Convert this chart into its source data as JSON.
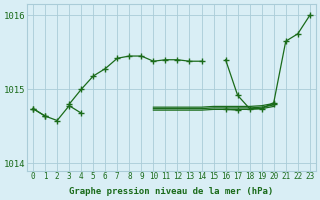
{
  "x": [
    0,
    1,
    2,
    3,
    4,
    5,
    6,
    7,
    8,
    9,
    10,
    11,
    12,
    13,
    14,
    15,
    16,
    17,
    18,
    19,
    20,
    21,
    22,
    23
  ],
  "bg_color": "#d9eef5",
  "grid_color": "#aaccd8",
  "line_color": "#1a6b1a",
  "text_color": "#1a6b1a",
  "xlabel": "Graphe pression niveau de la mer (hPa)",
  "ylim": [
    1013.9,
    1016.15
  ],
  "yticks": [
    1014,
    1015,
    1016
  ],
  "fig_bg": "#d9eef5",
  "s_main": [
    1014.74,
    1014.64,
    null,
    1014.8,
    1015.0,
    1015.18,
    1015.28,
    1015.42,
    1015.45,
    1015.45,
    1015.38,
    1015.4,
    1015.4,
    1015.38,
    1015.38,
    null,
    1015.4,
    1014.92,
    1014.74,
    1014.74,
    1014.82,
    1015.65,
    1015.75,
    1016.0
  ],
  "s_lower": [
    1014.74,
    1014.64,
    1014.58,
    1014.78,
    1014.68,
    null,
    null,
    null,
    null,
    null,
    null,
    null,
    null,
    null,
    null,
    null,
    1014.73,
    1014.72,
    null,
    null,
    1014.8,
    null,
    null,
    null
  ],
  "s_flat1": [
    1014.62,
    null,
    null,
    null,
    null,
    null,
    null,
    null,
    null,
    null,
    1014.72,
    1014.72,
    1014.72,
    1014.72,
    1014.72,
    1014.73,
    1014.73,
    1014.73,
    1014.73,
    1014.74,
    1014.77,
    null,
    null,
    null
  ],
  "s_flat2": [
    1014.64,
    null,
    null,
    null,
    null,
    null,
    null,
    null,
    null,
    null,
    1014.74,
    1014.74,
    1014.74,
    1014.74,
    1014.74,
    1014.75,
    1014.75,
    1014.75,
    1014.75,
    1014.76,
    1014.79,
    null,
    null,
    null
  ],
  "s_flat3": [
    1014.66,
    null,
    null,
    null,
    null,
    null,
    null,
    null,
    null,
    null,
    1014.76,
    1014.76,
    1014.76,
    1014.76,
    1014.76,
    1014.77,
    1014.77,
    1014.77,
    1014.77,
    1014.78,
    1014.81,
    null,
    null,
    null
  ]
}
